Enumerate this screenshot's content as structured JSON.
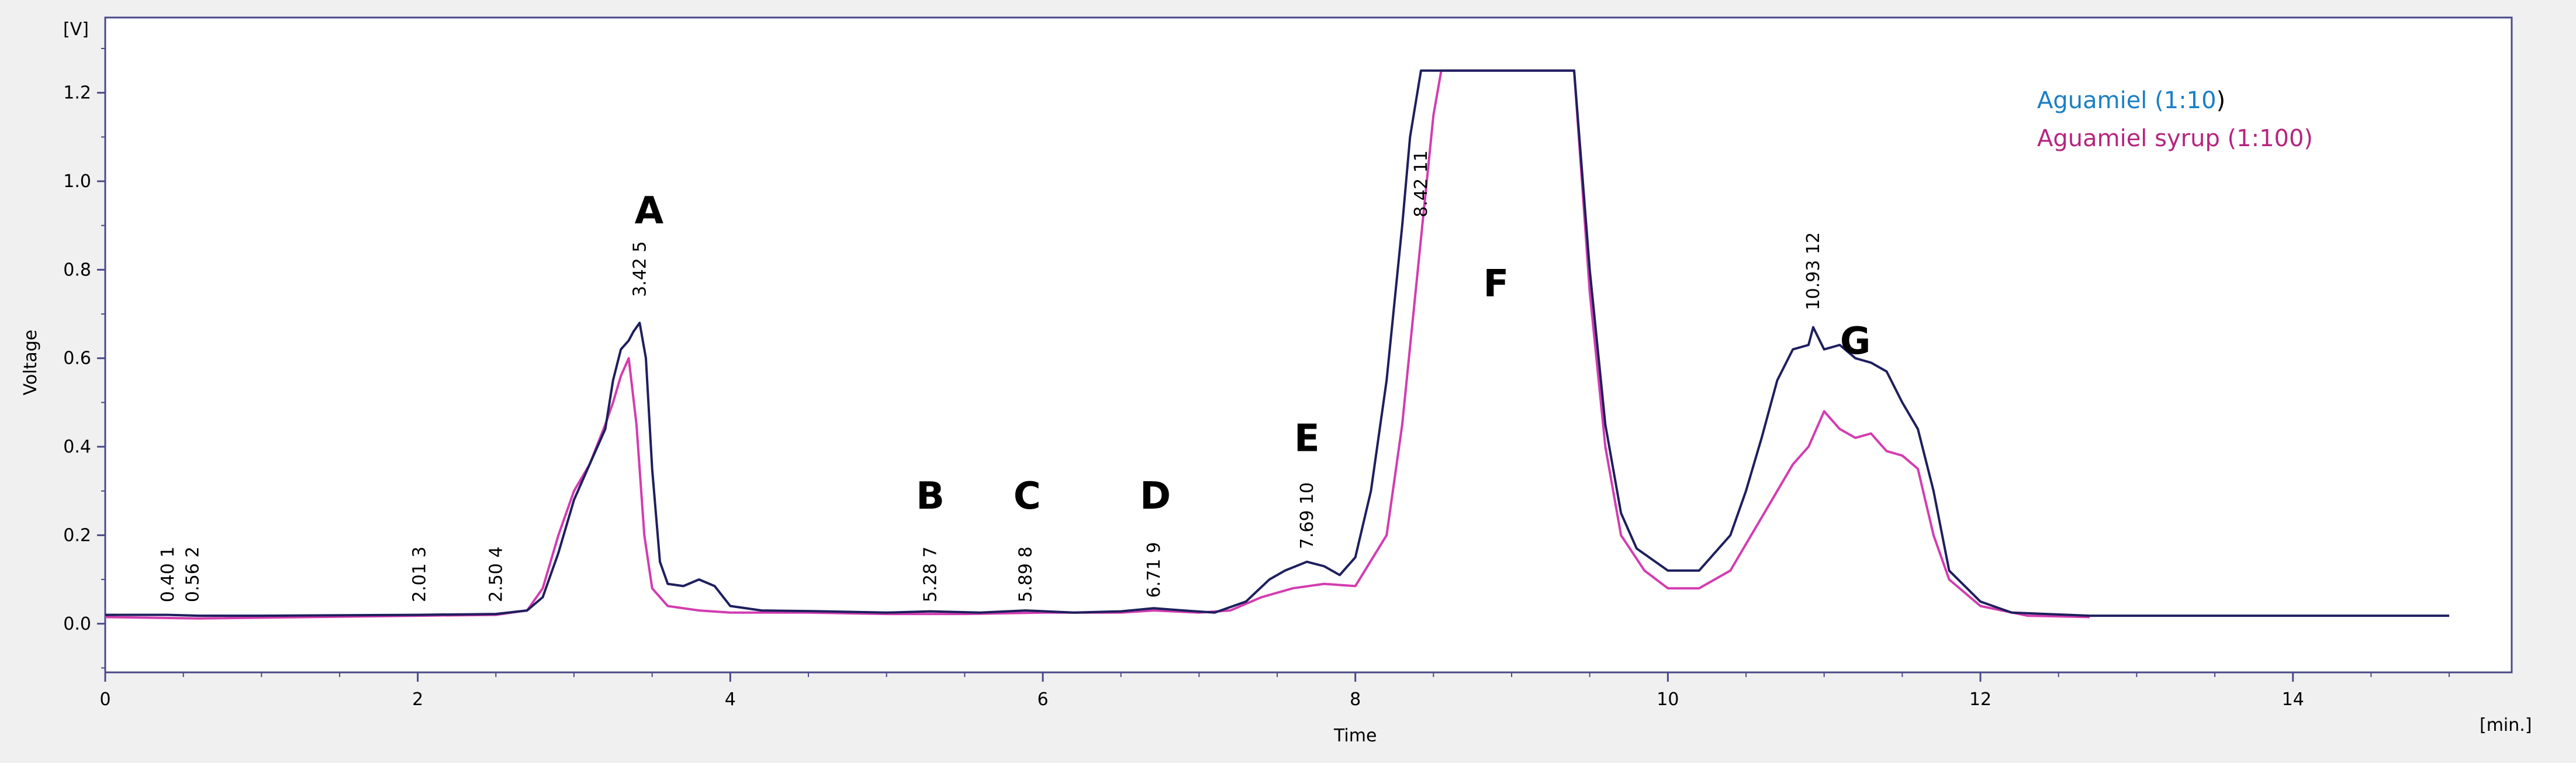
{
  "chart_data": {
    "type": "line",
    "title": "",
    "xlabel": "Time",
    "x_unit": "[min.]",
    "ylabel": "Voltage",
    "y_unit": "[V]",
    "xlim": [
      0,
      15.4
    ],
    "ylim": [
      -0.11,
      1.37
    ],
    "x_ticks": [
      0,
      2,
      4,
      6,
      8,
      10,
      12,
      14
    ],
    "y_ticks": [
      0.0,
      0.2,
      0.4,
      0.6,
      0.8,
      1.0,
      1.2
    ],
    "x_tick_labels": [
      "0",
      "2",
      "4",
      "6",
      "8",
      "10",
      "12",
      "14"
    ],
    "y_tick_labels": [
      "0.0",
      "0.2",
      "0.4",
      "0.6",
      "0.8",
      "1.0",
      "1.2"
    ],
    "grid": false,
    "legend_position": "top-right",
    "legend": [
      {
        "prefix": "Aguamiel (1:10",
        "suffix": ")",
        "color": "#1a7fc6"
      },
      {
        "prefix": "Aguamiel syrup (1:100)",
        "suffix": "",
        "color": "#b5257f"
      }
    ],
    "series": [
      {
        "color": "#1e1f5e",
        "points": [
          [
            0,
            0.02
          ],
          [
            0.4,
            0.02
          ],
          [
            0.6,
            0.018
          ],
          [
            1.0,
            0.018
          ],
          [
            2.0,
            0.02
          ],
          [
            2.5,
            0.022
          ],
          [
            2.7,
            0.03
          ],
          [
            2.8,
            0.06
          ],
          [
            2.9,
            0.16
          ],
          [
            3.0,
            0.28
          ],
          [
            3.1,
            0.36
          ],
          [
            3.2,
            0.44
          ],
          [
            3.25,
            0.55
          ],
          [
            3.3,
            0.62
          ],
          [
            3.35,
            0.64
          ],
          [
            3.38,
            0.66
          ],
          [
            3.42,
            0.68
          ],
          [
            3.46,
            0.6
          ],
          [
            3.5,
            0.35
          ],
          [
            3.55,
            0.14
          ],
          [
            3.6,
            0.09
          ],
          [
            3.7,
            0.085
          ],
          [
            3.8,
            0.1
          ],
          [
            3.9,
            0.085
          ],
          [
            4.0,
            0.04
          ],
          [
            4.2,
            0.03
          ],
          [
            4.6,
            0.028
          ],
          [
            5.0,
            0.025
          ],
          [
            5.28,
            0.028
          ],
          [
            5.6,
            0.025
          ],
          [
            5.89,
            0.03
          ],
          [
            6.2,
            0.025
          ],
          [
            6.5,
            0.028
          ],
          [
            6.71,
            0.035
          ],
          [
            6.9,
            0.03
          ],
          [
            7.1,
            0.025
          ],
          [
            7.3,
            0.05
          ],
          [
            7.45,
            0.1
          ],
          [
            7.55,
            0.12
          ],
          [
            7.69,
            0.14
          ],
          [
            7.8,
            0.13
          ],
          [
            7.9,
            0.11
          ],
          [
            8.0,
            0.15
          ],
          [
            8.1,
            0.3
          ],
          [
            8.2,
            0.55
          ],
          [
            8.3,
            0.9
          ],
          [
            8.35,
            1.1
          ],
          [
            8.42,
            1.25
          ],
          [
            9.4,
            1.25
          ],
          [
            9.5,
            0.8
          ],
          [
            9.6,
            0.45
          ],
          [
            9.7,
            0.25
          ],
          [
            9.8,
            0.17
          ],
          [
            10.0,
            0.12
          ],
          [
            10.2,
            0.12
          ],
          [
            10.4,
            0.2
          ],
          [
            10.5,
            0.3
          ],
          [
            10.6,
            0.42
          ],
          [
            10.7,
            0.55
          ],
          [
            10.8,
            0.62
          ],
          [
            10.9,
            0.63
          ],
          [
            10.93,
            0.67
          ],
          [
            11.0,
            0.62
          ],
          [
            11.1,
            0.63
          ],
          [
            11.2,
            0.6
          ],
          [
            11.3,
            0.59
          ],
          [
            11.4,
            0.57
          ],
          [
            11.5,
            0.5
          ],
          [
            11.6,
            0.44
          ],
          [
            11.7,
            0.3
          ],
          [
            11.8,
            0.12
          ],
          [
            12.0,
            0.05
          ],
          [
            12.2,
            0.025
          ],
          [
            12.7,
            0.018
          ]
        ]
      },
      {
        "color": "#d33cb0",
        "points": [
          [
            0,
            0.015
          ],
          [
            0.6,
            0.012
          ],
          [
            2.0,
            0.018
          ],
          [
            2.5,
            0.02
          ],
          [
            2.7,
            0.03
          ],
          [
            2.8,
            0.08
          ],
          [
            2.9,
            0.2
          ],
          [
            3.0,
            0.3
          ],
          [
            3.1,
            0.36
          ],
          [
            3.2,
            0.45
          ],
          [
            3.25,
            0.5
          ],
          [
            3.3,
            0.56
          ],
          [
            3.35,
            0.6
          ],
          [
            3.4,
            0.45
          ],
          [
            3.45,
            0.2
          ],
          [
            3.5,
            0.08
          ],
          [
            3.6,
            0.04
          ],
          [
            3.8,
            0.03
          ],
          [
            4.0,
            0.025
          ],
          [
            4.5,
            0.025
          ],
          [
            5.0,
            0.022
          ],
          [
            5.5,
            0.022
          ],
          [
            6.0,
            0.025
          ],
          [
            6.5,
            0.025
          ],
          [
            6.71,
            0.03
          ],
          [
            7.0,
            0.025
          ],
          [
            7.2,
            0.03
          ],
          [
            7.4,
            0.06
          ],
          [
            7.6,
            0.08
          ],
          [
            7.8,
            0.09
          ],
          [
            8.0,
            0.085
          ],
          [
            8.2,
            0.2
          ],
          [
            8.3,
            0.45
          ],
          [
            8.4,
            0.8
          ],
          [
            8.5,
            1.15
          ],
          [
            8.55,
            1.25
          ],
          [
            9.4,
            1.25
          ],
          [
            9.5,
            0.75
          ],
          [
            9.6,
            0.4
          ],
          [
            9.7,
            0.2
          ],
          [
            9.85,
            0.12
          ],
          [
            10.0,
            0.08
          ],
          [
            10.2,
            0.08
          ],
          [
            10.4,
            0.12
          ],
          [
            10.6,
            0.24
          ],
          [
            10.8,
            0.36
          ],
          [
            10.9,
            0.4
          ],
          [
            11.0,
            0.48
          ],
          [
            11.1,
            0.44
          ],
          [
            11.2,
            0.42
          ],
          [
            11.3,
            0.43
          ],
          [
            11.4,
            0.39
          ],
          [
            11.5,
            0.38
          ],
          [
            11.6,
            0.35
          ],
          [
            11.7,
            0.2
          ],
          [
            11.8,
            0.1
          ],
          [
            12.0,
            0.04
          ],
          [
            12.3,
            0.018
          ],
          [
            12.7,
            0.015
          ]
        ]
      }
    ],
    "baseline_extension": [
      [
        12.7,
        0.018
      ],
      [
        15.0,
        0.018
      ]
    ],
    "peak_annotations": [
      {
        "x": 0.4,
        "num": "1",
        "label": "0.40",
        "y_top": 0.03
      },
      {
        "x": 0.56,
        "num": "2",
        "label": "0.56",
        "y_top": 0.03
      },
      {
        "x": 2.01,
        "num": "3",
        "label": "2.01",
        "y_top": 0.03
      },
      {
        "x": 2.5,
        "num": "4",
        "label": "2.50",
        "y_top": 0.03
      },
      {
        "x": 3.42,
        "num": "5",
        "label": "3.42",
        "y_top": 0.72
      },
      {
        "x": 5.28,
        "num": "7",
        "label": "5.28",
        "y_top": 0.03
      },
      {
        "x": 5.89,
        "num": "8",
        "label": "5.89",
        "y_top": 0.03
      },
      {
        "x": 6.71,
        "num": "9",
        "label": "6.71",
        "y_top": 0.04
      },
      {
        "x": 7.69,
        "num": "10",
        "label": "7.69",
        "y_top": 0.15
      },
      {
        "x": 8.42,
        "num": "11",
        "label": "8.42",
        "y_top": 0.9
      },
      {
        "x": 10.93,
        "num": "12",
        "label": "10.93",
        "y_top": 0.69
      }
    ],
    "letter_labels": [
      {
        "text": "A",
        "x": 3.48,
        "y": 1.85
      },
      {
        "text": "B",
        "x": 5.28,
        "y": 0.26
      },
      {
        "text": "C",
        "x": 5.9,
        "y": 0.26
      },
      {
        "text": "D",
        "x": 6.72,
        "y": 0.26
      },
      {
        "text": "E",
        "x": 7.69,
        "y": 0.39
      },
      {
        "text": "F",
        "x": 8.9,
        "y": 0.74
      },
      {
        "text": "G",
        "x": 11.2,
        "y": 0.61
      }
    ]
  }
}
